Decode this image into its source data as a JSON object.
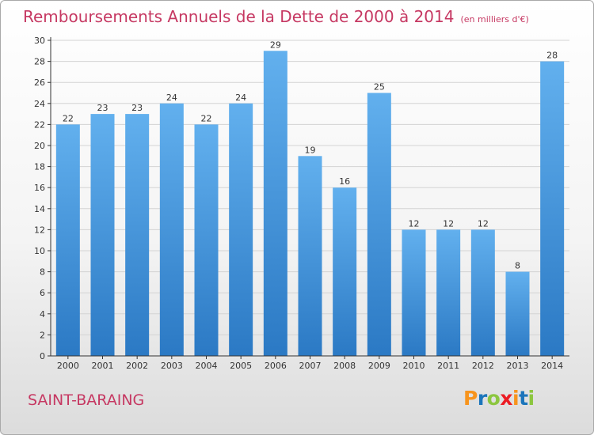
{
  "chart_data": {
    "type": "bar",
    "title": "Remboursements Annuels de la Dette de 2000 à 2014",
    "unit": "(en milliers d'€)",
    "categories": [
      "2000",
      "2001",
      "2002",
      "2003",
      "2004",
      "2005",
      "2006",
      "2007",
      "2008",
      "2009",
      "2010",
      "2011",
      "2012",
      "2013",
      "2014"
    ],
    "values": [
      22,
      23,
      23,
      24,
      22,
      24,
      29,
      19,
      16,
      25,
      12,
      12,
      12,
      8,
      28
    ],
    "ylim": [
      0,
      30
    ],
    "yticks": [
      0,
      2,
      4,
      6,
      8,
      10,
      12,
      14,
      16,
      18,
      20,
      22,
      24,
      26,
      28,
      30
    ],
    "grid": true,
    "bar_color": "#3c8fd6"
  },
  "commune": "SAINT-BARAING",
  "logo": {
    "text": "Proxiti",
    "letter_colors": [
      "#f7941d",
      "#1b75bb",
      "#8cc63f",
      "#ec1c24",
      "#f7941d",
      "#1b75bb",
      "#8cc63f"
    ]
  },
  "colors": {
    "accent": "#c63862",
    "grid": "#d3d3d3",
    "axis": "#333333"
  }
}
